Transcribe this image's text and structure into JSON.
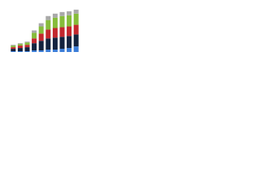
{
  "chart_data": {
    "type": "stacked-bar",
    "categories": [
      null,
      null,
      null,
      null,
      null,
      null,
      null,
      null,
      null,
      null
    ],
    "series": [
      {
        "color": "#3b7dd8",
        "values": [
          1,
          1,
          1,
          2,
          2,
          3,
          3,
          4,
          5,
          7
        ]
      },
      {
        "color": "#14233f",
        "values": [
          3,
          4,
          5,
          9,
          12,
          14,
          15,
          15,
          15,
          15
        ]
      },
      {
        "color": "#c3272e",
        "values": [
          2,
          3,
          3,
          6,
          9,
          11,
          12,
          12,
          12,
          12
        ]
      },
      {
        "color": "#86bc3a",
        "values": [
          2,
          2,
          3,
          7,
          9,
          12,
          13,
          14,
          14,
          14
        ]
      },
      {
        "color": "#a9a9a9",
        "values": [
          1,
          1,
          1,
          3,
          4,
          5,
          5,
          5,
          5,
          5
        ]
      }
    ],
    "ylim": [
      0,
      60
    ]
  }
}
